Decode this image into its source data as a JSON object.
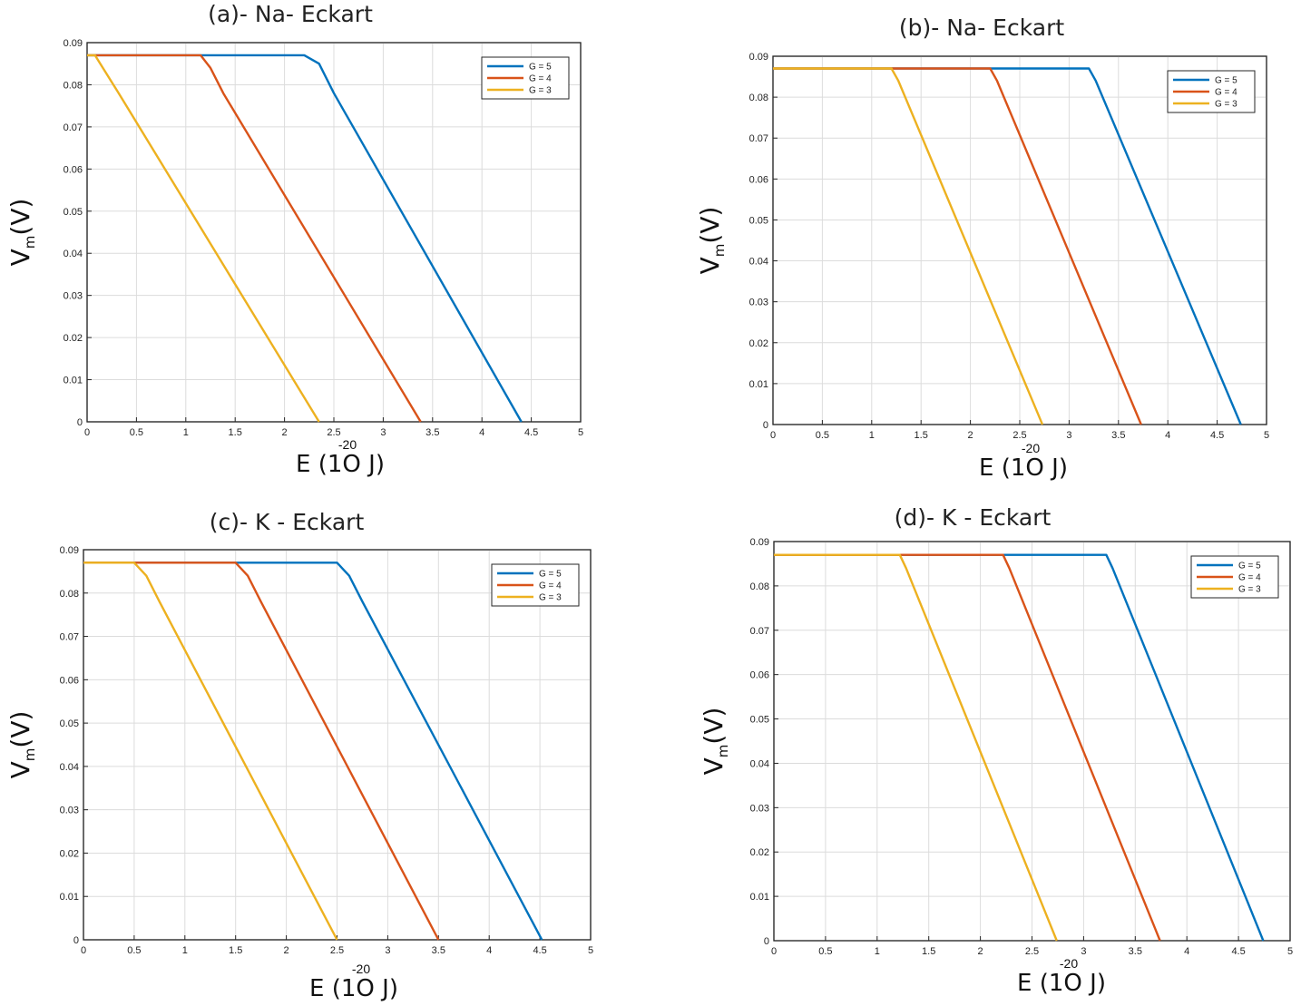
{
  "colors": {
    "G5": "#0072BD",
    "G4": "#D95319",
    "G3": "#EDB120"
  },
  "chart_data": [
    {
      "id": "a",
      "type": "line",
      "title": "(a)- Na- Eckart",
      "ylabel_main": "V",
      "ylabel_sub": "m",
      "ylabel_unit": "(V)",
      "xlabel_pre": "E (1",
      "xlabel_o": "O",
      "xlabel_post": "J)",
      "xlabel_exp": "-20",
      "xlim": [
        0,
        5
      ],
      "ylim": [
        0,
        0.09
      ],
      "xticks": [
        "0",
        "0.5",
        "1",
        "1.5",
        "2",
        "2.5",
        "3",
        "3.5",
        "4",
        "4.5",
        "5"
      ],
      "yticks": [
        "0",
        "0.01",
        "0.02",
        "0.03",
        "0.04",
        "0.05",
        "0.06",
        "0.07",
        "0.08",
        "0.09"
      ],
      "grid": true,
      "legend_position": "top-right",
      "series": [
        {
          "name": "G = 5",
          "color_key": "G5",
          "x": [
            0,
            2.2,
            2.35,
            2.5,
            4.4
          ],
          "y": [
            0.087,
            0.087,
            0.085,
            0.078,
            0
          ]
        },
        {
          "name": "G = 4",
          "color_key": "G4",
          "x": [
            0,
            1.15,
            1.25,
            1.38,
            3.38
          ],
          "y": [
            0.087,
            0.087,
            0.084,
            0.078,
            0
          ]
        },
        {
          "name": "G = 3",
          "color_key": "G3",
          "x": [
            0,
            0.08,
            0.16,
            0.32,
            2.35
          ],
          "y": [
            0.087,
            0.087,
            0.084,
            0.078,
            0
          ]
        }
      ]
    },
    {
      "id": "b",
      "type": "line",
      "title": "(b)- Na- Eckart",
      "ylabel_main": "V",
      "ylabel_sub": "m",
      "ylabel_unit": "(V)",
      "xlabel_pre": "E (1",
      "xlabel_o": "O",
      "xlabel_post": "J)",
      "xlabel_exp": "-20",
      "xlim": [
        0,
        5
      ],
      "ylim": [
        0,
        0.09
      ],
      "xticks": [
        "0",
        "0.5",
        "1",
        "1.5",
        "2",
        "2.5",
        "3",
        "3.5",
        "4",
        "4.5",
        "5"
      ],
      "yticks": [
        "0",
        "0.01",
        "0.02",
        "0.03",
        "0.04",
        "0.05",
        "0.06",
        "0.07",
        "0.08",
        "0.09"
      ],
      "grid": true,
      "legend_position": "top-right",
      "series": [
        {
          "name": "G = 5",
          "color_key": "G5",
          "x": [
            0,
            3.2,
            3.27,
            4.74
          ],
          "y": [
            0.087,
            0.087,
            0.084,
            0
          ]
        },
        {
          "name": "G = 4",
          "color_key": "G4",
          "x": [
            0,
            2.2,
            2.27,
            3.73
          ],
          "y": [
            0.087,
            0.087,
            0.084,
            0
          ]
        },
        {
          "name": "G = 3",
          "color_key": "G3",
          "x": [
            0,
            1.2,
            1.27,
            2.73
          ],
          "y": [
            0.087,
            0.087,
            0.084,
            0
          ]
        }
      ]
    },
    {
      "id": "c",
      "type": "line",
      "title": "(c)- K - Eckart",
      "ylabel_main": "V",
      "ylabel_sub": "m",
      "ylabel_unit": "(V)",
      "xlabel_pre": "E (1",
      "xlabel_o": "O",
      "xlabel_post": "J)",
      "xlabel_exp": "-20",
      "xlim": [
        0,
        5
      ],
      "ylim": [
        0,
        0.09
      ],
      "xticks": [
        "0",
        "0.5",
        "1",
        "1.5",
        "2",
        "2.5",
        "3",
        "3.5",
        "4",
        "4.5",
        "5"
      ],
      "yticks": [
        "0",
        "0.01",
        "0.02",
        "0.03",
        "0.04",
        "0.05",
        "0.06",
        "0.07",
        "0.08",
        "0.09"
      ],
      "grid": true,
      "legend_position": "top-right",
      "series": [
        {
          "name": "G = 5",
          "color_key": "G5",
          "x": [
            0,
            2.5,
            2.62,
            2.75,
            4.52
          ],
          "y": [
            0.087,
            0.087,
            0.084,
            0.078,
            0
          ]
        },
        {
          "name": "G = 4",
          "color_key": "G4",
          "x": [
            0,
            1.5,
            1.62,
            1.75,
            3.5
          ],
          "y": [
            0.087,
            0.087,
            0.084,
            0.078,
            0
          ]
        },
        {
          "name": "G = 3",
          "color_key": "G3",
          "x": [
            0,
            0.5,
            0.62,
            0.75,
            2.5
          ],
          "y": [
            0.087,
            0.087,
            0.084,
            0.078,
            0
          ]
        }
      ]
    },
    {
      "id": "d",
      "type": "line",
      "title": "(d)- K - Eckart",
      "ylabel_main": "V",
      "ylabel_sub": "m",
      "ylabel_unit": "(V)",
      "xlabel_pre": "E (1",
      "xlabel_o": "O",
      "xlabel_post": "J)",
      "xlabel_exp": "-20",
      "xlim": [
        0,
        5
      ],
      "ylim": [
        0,
        0.09
      ],
      "xticks": [
        "0",
        "0.5",
        "1",
        "1.5",
        "2",
        "2.5",
        "3",
        "3.5",
        "4",
        "4.5",
        "5"
      ],
      "yticks": [
        "0",
        "0.01",
        "0.02",
        "0.03",
        "0.04",
        "0.05",
        "0.06",
        "0.07",
        "0.08",
        "0.09"
      ],
      "grid": true,
      "legend_position": "top-right",
      "series": [
        {
          "name": "G = 5",
          "color_key": "G5",
          "x": [
            0,
            3.22,
            3.28,
            4.74
          ],
          "y": [
            0.087,
            0.087,
            0.084,
            0
          ]
        },
        {
          "name": "G = 4",
          "color_key": "G4",
          "x": [
            0,
            2.22,
            2.28,
            3.74
          ],
          "y": [
            0.087,
            0.087,
            0.084,
            0
          ]
        },
        {
          "name": "G = 3",
          "color_key": "G3",
          "x": [
            0,
            1.22,
            1.28,
            2.74
          ],
          "y": [
            0.087,
            0.087,
            0.084,
            0
          ]
        }
      ]
    }
  ]
}
